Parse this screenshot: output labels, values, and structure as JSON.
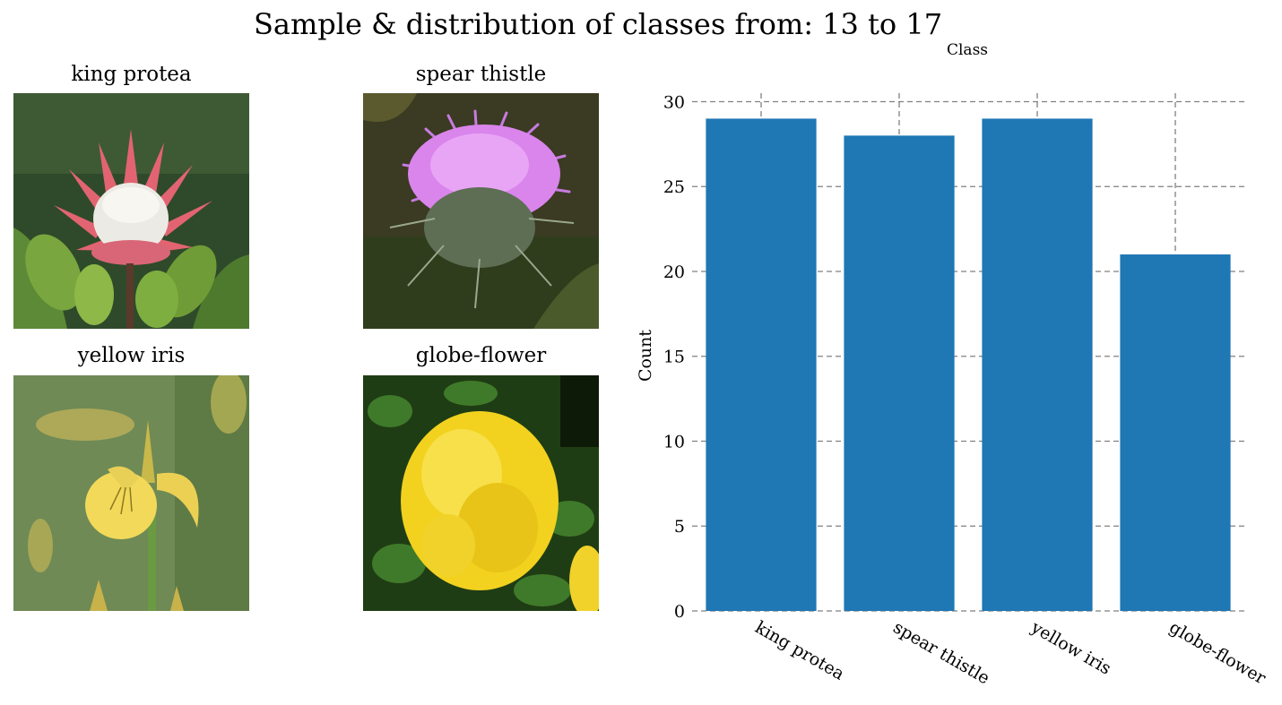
{
  "figure": {
    "suptitle": "Sample & distribution of classes from: 13 to 17"
  },
  "samples": [
    {
      "label": "king protea",
      "icon": "king-protea-photo"
    },
    {
      "label": "spear thistle",
      "icon": "spear-thistle-photo"
    },
    {
      "label": "yellow iris",
      "icon": "yellow-iris-photo"
    },
    {
      "label": "globe-flower",
      "icon": "globe-flower-photo"
    }
  ],
  "chart_data": {
    "type": "bar",
    "title": "",
    "xlabel": "Class",
    "ylabel": "Count",
    "categories": [
      "king protea",
      "spear thistle",
      "yellow iris",
      "globe-flower"
    ],
    "values": [
      29,
      28,
      29,
      21
    ],
    "ylim": [
      0,
      30
    ],
    "yticks": [
      0,
      5,
      10,
      15,
      20,
      25,
      30
    ],
    "grid": true,
    "xlabel_position": "top",
    "bar_color": "#1f77b4",
    "grid_color": "#808080"
  }
}
